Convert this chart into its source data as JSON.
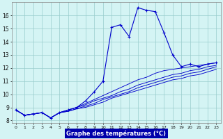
{
  "hours": [
    0,
    1,
    2,
    3,
    4,
    5,
    6,
    7,
    8,
    9,
    10,
    11,
    12,
    13,
    14,
    15,
    16,
    17,
    18,
    19,
    20,
    21,
    22,
    23
  ],
  "main_line": [
    8.8,
    8.4,
    8.5,
    8.6,
    8.2,
    8.6,
    8.8,
    9.0,
    9.5,
    10.2,
    11.0,
    15.1,
    15.3,
    14.4,
    16.6,
    16.4,
    16.3,
    14.7,
    13.0,
    12.1,
    12.3,
    12.1,
    12.3,
    12.4
  ],
  "line2": [
    8.8,
    8.4,
    8.5,
    8.6,
    8.2,
    8.6,
    8.8,
    9.0,
    9.3,
    9.6,
    9.9,
    10.2,
    10.5,
    10.8,
    11.1,
    11.3,
    11.6,
    11.8,
    11.9,
    12.0,
    12.1,
    12.2,
    12.3,
    12.4
  ],
  "line3": [
    8.8,
    8.4,
    8.5,
    8.6,
    8.2,
    8.6,
    8.8,
    9.0,
    9.2,
    9.5,
    9.7,
    9.9,
    10.2,
    10.4,
    10.7,
    10.9,
    11.1,
    11.3,
    11.5,
    11.6,
    11.8,
    11.9,
    12.1,
    12.2
  ],
  "line4": [
    8.8,
    8.4,
    8.5,
    8.6,
    8.2,
    8.6,
    8.7,
    8.9,
    9.1,
    9.3,
    9.6,
    9.8,
    10.0,
    10.2,
    10.5,
    10.7,
    10.9,
    11.1,
    11.3,
    11.4,
    11.6,
    11.7,
    11.9,
    12.1
  ],
  "line5": [
    8.8,
    8.4,
    8.5,
    8.6,
    8.2,
    8.6,
    8.7,
    8.9,
    9.0,
    9.2,
    9.4,
    9.7,
    9.9,
    10.1,
    10.3,
    10.5,
    10.7,
    10.9,
    11.1,
    11.2,
    11.4,
    11.5,
    11.7,
    11.9
  ],
  "line_color": "#0000cc",
  "bg_color": "#d4f4f4",
  "grid_color": "#99cccc",
  "xlabel": "Graphe des températures (°C)",
  "xlabel_bg": "#0000aa",
  "xlabel_color": "#ffffff",
  "ylim": [
    7.8,
    17.0
  ],
  "yticks": [
    8,
    9,
    10,
    11,
    12,
    13,
    14,
    15,
    16
  ],
  "xlim": [
    -0.5,
    23.5
  ],
  "figsize": [
    3.2,
    2.0
  ],
  "dpi": 100
}
